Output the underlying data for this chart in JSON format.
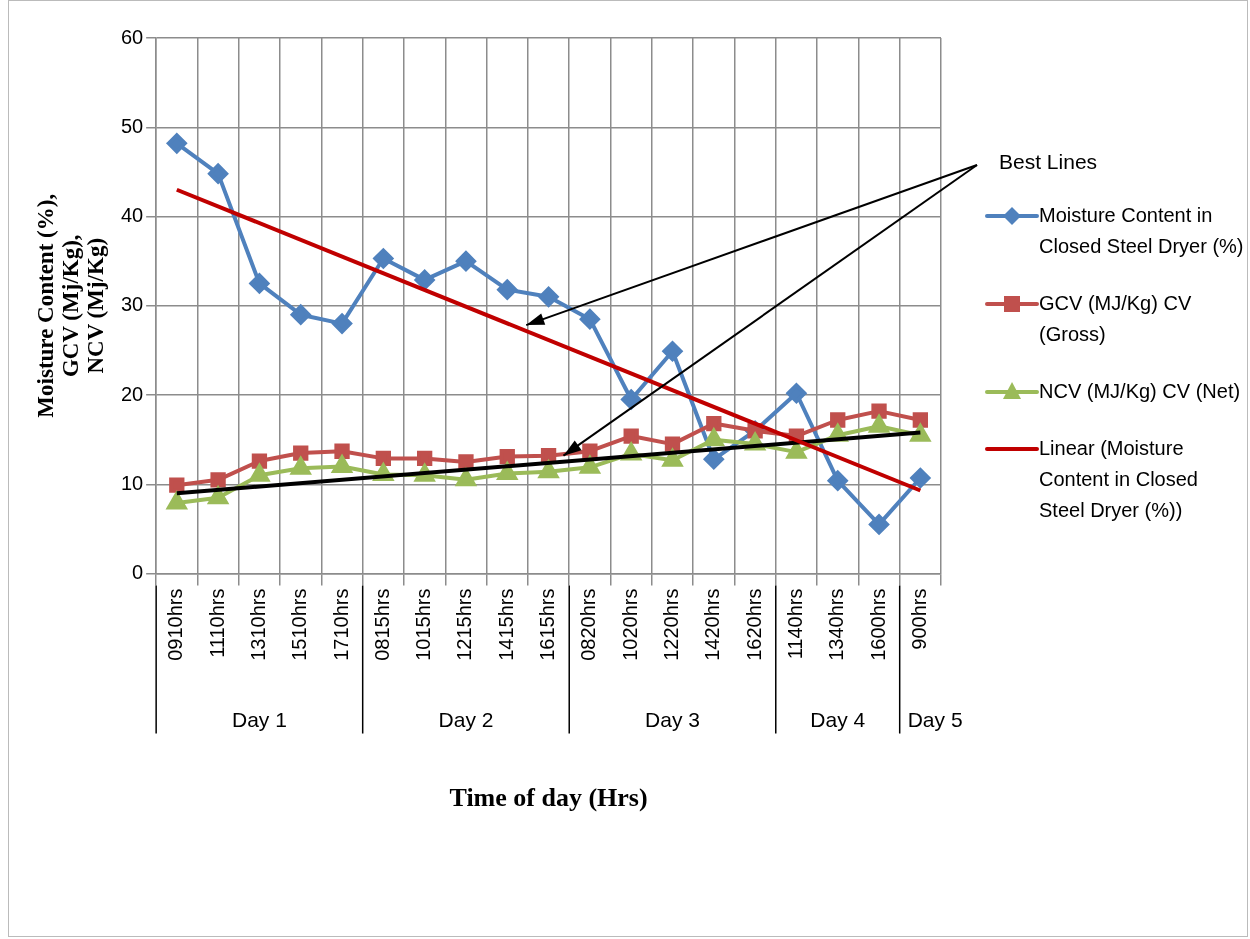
{
  "chart_data": {
    "type": "line",
    "xlabel": "Time of day (Hrs)",
    "ylabel": "Moisture Content (%),\nGCV (Mj/Kg),\nNCV (Mj/Kg)",
    "categories": [
      "0910hrs",
      "1110hrs",
      "1310hrs",
      "1510hrs",
      "1710hrs",
      "0815hrs",
      "1015hrs",
      "1215hrs",
      "1415hrs",
      "1615hrs",
      "0820hrs",
      "1020hrs",
      "1220hrs",
      "1420hrs",
      "1620hrs",
      "1140hrs",
      "1340hrs",
      "1600hrs",
      "900hrs"
    ],
    "series": [
      {
        "name": "Moisture Content in Closed Steel Dryer (%)",
        "color": "#4f81bd",
        "marker": "diamond",
        "values": [
          48.2,
          44.8,
          32.5,
          29,
          28,
          35.3,
          32.9,
          35,
          31.8,
          31,
          28.5,
          19.5,
          24.9,
          12.8,
          16,
          20.2,
          10.4,
          5.5,
          10.7
        ]
      },
      {
        "name": "GCV (MJ/Kg) CV (Gross)",
        "color": "#c0504d",
        "marker": "square",
        "values": [
          9.9,
          10.5,
          12.6,
          13.5,
          13.7,
          12.9,
          12.9,
          12.5,
          13.1,
          13.2,
          13.7,
          15.4,
          14.5,
          16.8,
          16,
          15.4,
          17.2,
          18.2,
          17.2
        ]
      },
      {
        "name": "NCV (MJ/Kg) CV (Net)",
        "color": "#9bbb59",
        "marker": "triangle",
        "values": [
          7.9,
          8.5,
          11,
          11.8,
          12,
          11.1,
          11,
          10.5,
          11.2,
          11.4,
          11.9,
          13.4,
          12.7,
          15,
          14.5,
          13.6,
          15.5,
          16.5,
          15.5
        ]
      },
      {
        "name": "Linear (Moisture Content in Closed Steel Dryer (%))",
        "color": "#c00000",
        "marker": "none",
        "x": [
          "0910hrs",
          "900hrs"
        ],
        "values": [
          43,
          9.3
        ]
      },
      {
        "color": "#000000",
        "marker": "none",
        "x": [
          "0910hrs",
          "900hrs"
        ],
        "values": [
          9,
          15.8
        ]
      }
    ],
    "ylim": [
      0,
      60
    ],
    "yticks": [
      0,
      10,
      20,
      30,
      40,
      50,
      60
    ],
    "grid": true,
    "legend": "right",
    "annotations": [
      "Day 1",
      "Day 2",
      "Day 3",
      "Day 4",
      "Day 5",
      "Best Lines"
    ]
  }
}
